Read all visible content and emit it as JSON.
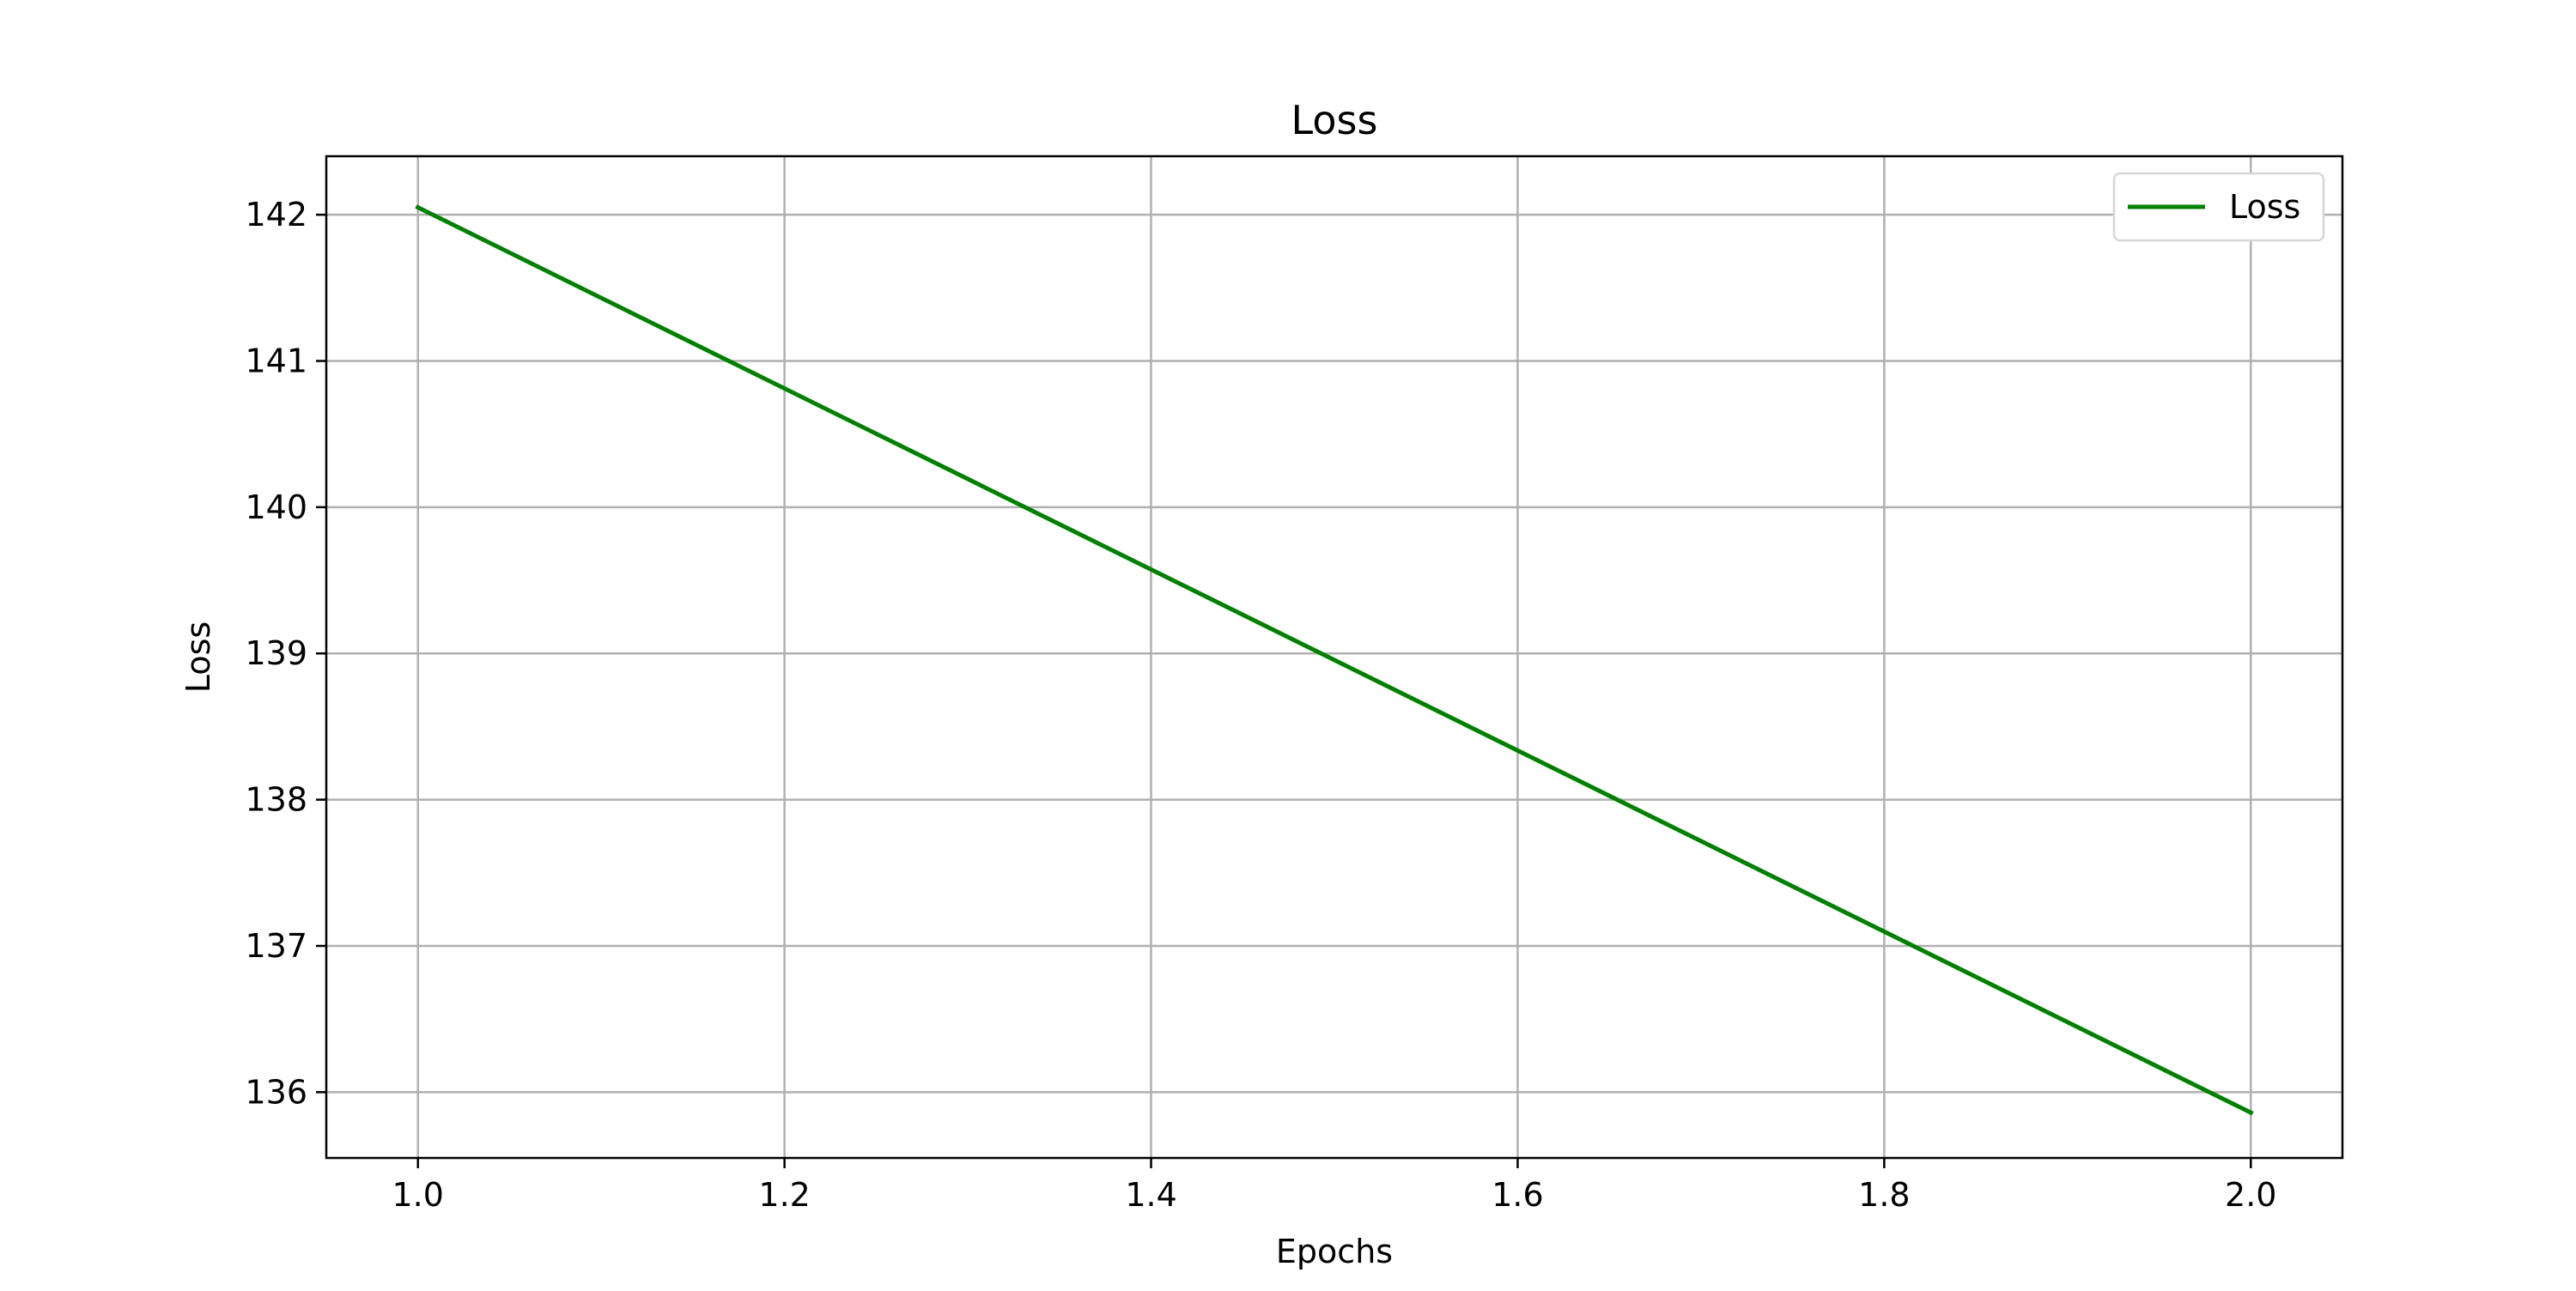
{
  "chart_data": {
    "type": "line",
    "title": "Loss",
    "xlabel": "Epochs",
    "ylabel": "Loss",
    "x": [
      1.0,
      2.0
    ],
    "series": [
      {
        "name": "Loss",
        "values": [
          142.05,
          135.86
        ],
        "color": "#008000"
      }
    ],
    "xlim": [
      0.95,
      2.05
    ],
    "ylim": [
      135.55,
      142.4
    ],
    "xticks": [
      1.0,
      1.2,
      1.4,
      1.6,
      1.8,
      2.0
    ],
    "xtick_labels": [
      "1.0",
      "1.2",
      "1.4",
      "1.6",
      "1.8",
      "2.0"
    ],
    "yticks": [
      136,
      137,
      138,
      139,
      140,
      141,
      142
    ],
    "ytick_labels": [
      "136",
      "137",
      "138",
      "139",
      "140",
      "141",
      "142"
    ],
    "grid": true,
    "legend_position": "top-right"
  }
}
